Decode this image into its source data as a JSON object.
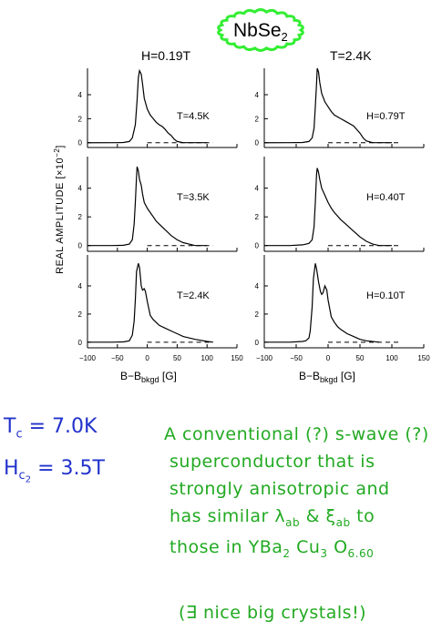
{
  "title": {
    "text": "NbSe",
    "sub": "2",
    "badge_color": "#33ee33"
  },
  "ylabel_main": "REAL AMPLITUDE  [×10",
  "ylabel_exp": "−2",
  "ylabel_close": "]",
  "xlabel_main": "B−B",
  "xlabel_sub": "bkgd",
  "xlabel_unit": " [G]",
  "notes": {
    "tc_sym": "T",
    "tc_sub": "c",
    "tc_val": "= 7.0K",
    "hc_sym": "H",
    "hc_sub": "c",
    "hc_sub2": "2",
    "hc_val": "= 3.5T",
    "line1": "A conventional (?) s-wave (?)",
    "line2": "superconductor that is",
    "line3": "strongly anisotropic and",
    "line4_pre": "has similar λ",
    "line4_sub1": "ab",
    "line4_mid": " & ξ",
    "line4_sub2": "ab",
    "line4_post": " to",
    "line5_pre": "those in YBa",
    "line5_s1": "2",
    "line5_m1": " Cu",
    "line5_s2": "3",
    "line5_m2": " O",
    "line5_s3": "6.60",
    "line6": "(∃ nice big crystals!)"
  },
  "chart_data": [
    {
      "column": "left",
      "column_header": "H=0.19T",
      "type": "line",
      "xlim": [
        -100,
        150
      ],
      "x_ticks": [
        -100,
        -50,
        0,
        50,
        100,
        150
      ],
      "y_ticks": [
        0,
        2,
        4
      ],
      "grid": false,
      "panels": [
        {
          "label": "T=4.5K",
          "ylim": [
            -0.4,
            6.2
          ],
          "x": [
            -50,
            -40,
            -30,
            -25,
            -20,
            -17,
            -15,
            -13,
            -10,
            -8,
            -5,
            0,
            5,
            10,
            15,
            20,
            25,
            30,
            35,
            40,
            45,
            50,
            60,
            80,
            100
          ],
          "y": [
            0,
            0.02,
            0.1,
            0.4,
            1.5,
            3.5,
            5.4,
            6.0,
            5.7,
            4.9,
            3.7,
            2.8,
            2.3,
            2.0,
            1.7,
            1.5,
            1.35,
            1.1,
            0.8,
            0.6,
            0.3,
            0.1,
            0,
            0,
            0
          ]
        },
        {
          "label": "T=3.5K",
          "ylim": [
            -0.4,
            6.2
          ],
          "x": [
            -60,
            -40,
            -30,
            -25,
            -22,
            -20,
            -18,
            -17,
            -15,
            -13,
            -10,
            -8,
            -5,
            0,
            5,
            10,
            15,
            20,
            30,
            40,
            50,
            60,
            70,
            80,
            100
          ],
          "y": [
            0,
            0.02,
            0.1,
            0.4,
            1.5,
            3.0,
            4.8,
            5.5,
            5.2,
            4.6,
            4.2,
            3.6,
            3.0,
            2.6,
            2.3,
            2.0,
            1.7,
            1.5,
            1.1,
            0.7,
            0.4,
            0.2,
            0.1,
            0,
            0
          ]
        },
        {
          "label": "T=2.4K",
          "ylim": [
            -0.4,
            6.2
          ],
          "x": [
            -60,
            -40,
            -30,
            -25,
            -22,
            -20,
            -18,
            -15,
            -13,
            -10,
            -8,
            -5,
            -3,
            0,
            5,
            10,
            15,
            20,
            30,
            40,
            50,
            60,
            80,
            100,
            110
          ],
          "y": [
            0,
            0.02,
            0.1,
            0.5,
            1.5,
            3.0,
            5.0,
            5.6,
            5.3,
            4.0,
            3.7,
            3.8,
            3.6,
            2.9,
            1.9,
            1.6,
            1.4,
            1.2,
            1.0,
            0.8,
            0.6,
            0.4,
            0.2,
            0.05,
            0
          ]
        }
      ]
    },
    {
      "column": "right",
      "column_header": "T=2.4K",
      "type": "line",
      "xlim": [
        -100,
        150
      ],
      "x_ticks": [
        -100,
        -50,
        0,
        50,
        100,
        150
      ],
      "y_ticks": [
        0,
        2,
        4
      ],
      "grid": false,
      "panels": [
        {
          "label": "H=0.79T",
          "ylim": [
            -0.4,
            6.2
          ],
          "x": [
            -60,
            -40,
            -30,
            -25,
            -22,
            -20,
            -18,
            -17,
            -15,
            -13,
            -10,
            -5,
            0,
            5,
            10,
            20,
            30,
            40,
            50,
            55,
            60,
            70,
            80,
            100
          ],
          "y": [
            0,
            0.02,
            0.1,
            0.4,
            1.2,
            3.0,
            5.0,
            6.2,
            5.9,
            5.0,
            4.1,
            3.4,
            3.0,
            2.6,
            2.3,
            2.0,
            1.7,
            1.4,
            0.8,
            0.4,
            0.15,
            0,
            0,
            0
          ]
        },
        {
          "label": "H=0.40T",
          "ylim": [
            -0.4,
            6.2
          ],
          "x": [
            -60,
            -40,
            -30,
            -25,
            -22,
            -20,
            -18,
            -17,
            -15,
            -13,
            -10,
            -5,
            0,
            5,
            10,
            20,
            30,
            40,
            50,
            60,
            70,
            80,
            100
          ],
          "y": [
            0,
            0.05,
            0.15,
            0.4,
            1.3,
            3.0,
            5.0,
            5.4,
            5.1,
            4.6,
            4.0,
            3.5,
            3.0,
            2.6,
            2.3,
            1.8,
            1.4,
            1.0,
            0.6,
            0.3,
            0.1,
            0,
            0
          ]
        },
        {
          "label": "H=0.10T",
          "ylim": [
            -0.4,
            6.2
          ],
          "x": [
            -60,
            -40,
            -35,
            -30,
            -28,
            -25,
            -23,
            -20,
            -18,
            -15,
            -12,
            -10,
            -8,
            -5,
            -2,
            0,
            5,
            10,
            15,
            20,
            30,
            40,
            50,
            60,
            80
          ],
          "y": [
            0,
            0.05,
            0.1,
            0.3,
            0.8,
            2.5,
            4.5,
            5.6,
            5.2,
            4.3,
            3.6,
            3.4,
            3.5,
            4.0,
            3.7,
            3.0,
            1.8,
            1.4,
            1.1,
            0.9,
            0.6,
            0.4,
            0.2,
            0.1,
            0
          ]
        }
      ]
    }
  ]
}
